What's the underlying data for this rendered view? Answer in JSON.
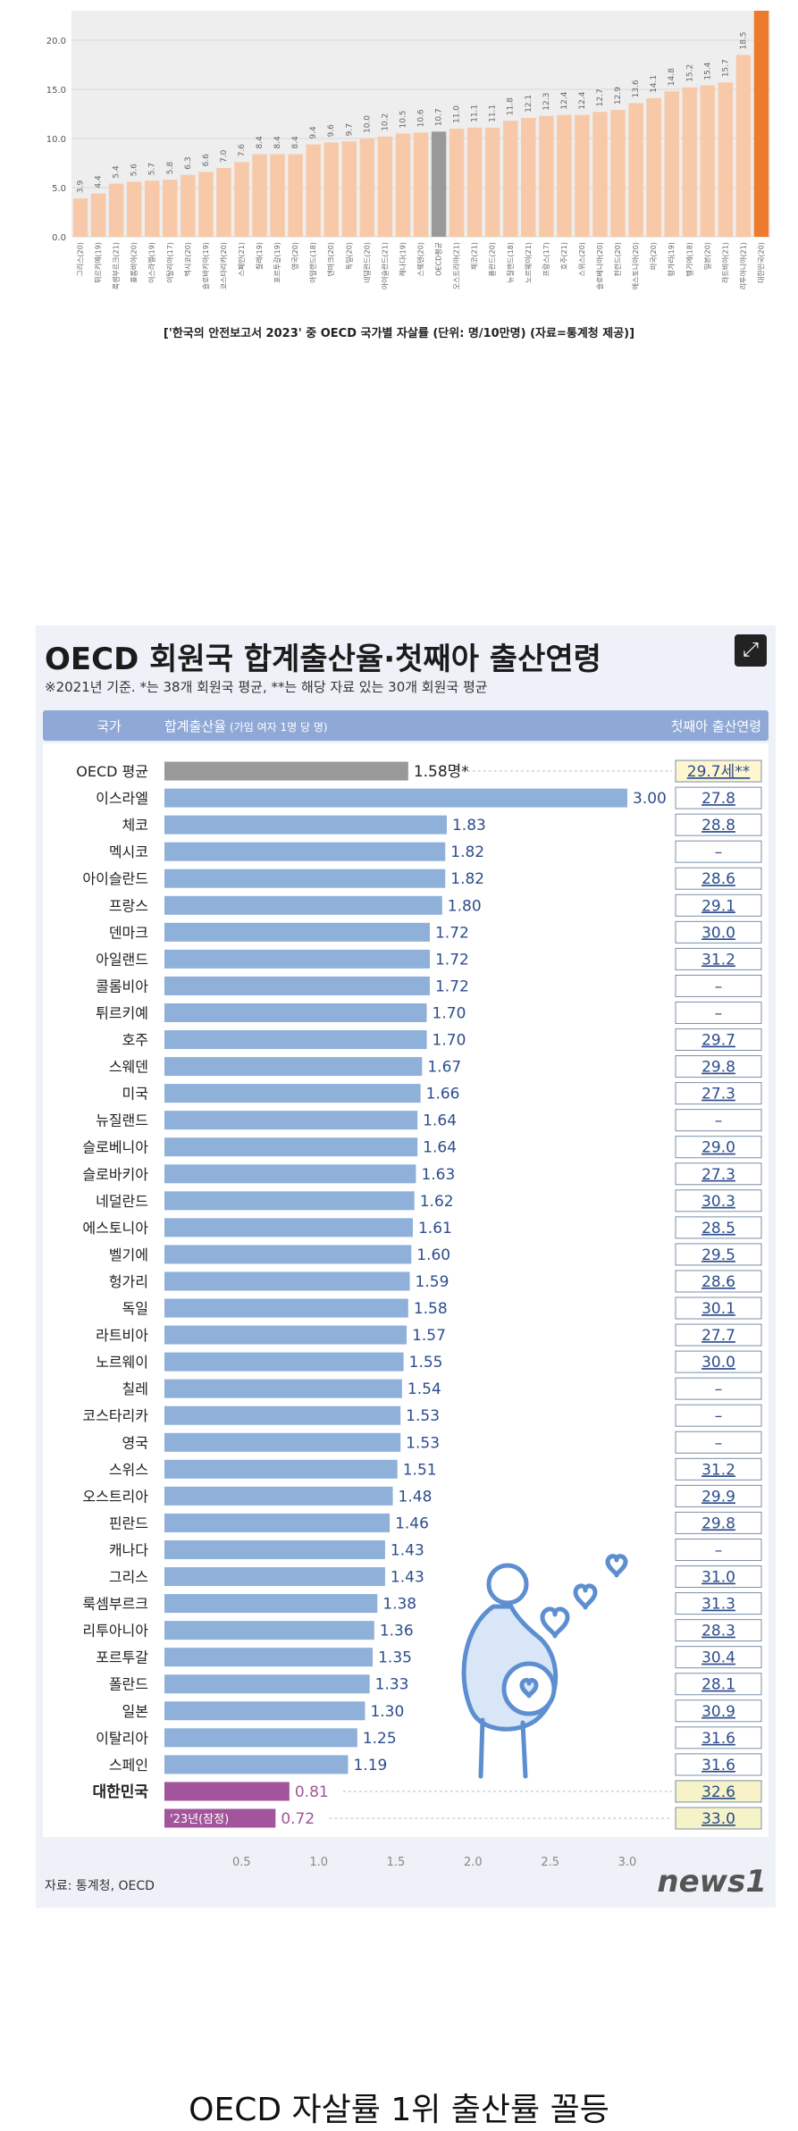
{
  "chart_data": [
    {
      "type": "bar",
      "title": "",
      "caption": "['한국의 안전보고서 2023' 중 OECD 국가별 자살률 (단위: 명/10만명) (자료=통계청 제공)]",
      "xlabel": "",
      "ylabel": "",
      "ylim": [
        0,
        23
      ],
      "yticks": [
        "0.0",
        "5.0",
        "10.0",
        "15.0",
        "20.0"
      ],
      "grid": true,
      "categories": [
        "그리스(20)",
        "튀르키예(19)",
        "룩셈부르크(21)",
        "콜롬비아(20)",
        "이스라엘(19)",
        "이탈리아(17)",
        "멕시코(20)",
        "슬로바키아(19)",
        "코스타리카(20)",
        "스페인(21)",
        "칠레(19)",
        "포르투갈(19)",
        "영국(20)",
        "아일랜드(18)",
        "덴마크(20)",
        "독일(20)",
        "네덜란드(20)",
        "아이슬란드(21)",
        "캐나다(19)",
        "스웨덴(20)",
        "OECD평균",
        "오스트리아(21)",
        "체코(21)",
        "폴란드(20)",
        "뉴질랜드(18)",
        "노르웨이(21)",
        "프랑스(17)",
        "호주(21)",
        "스위스(20)",
        "슬로베니아(20)",
        "핀란드(20)",
        "에스토니아(20)",
        "미국(20)",
        "헝가리(19)",
        "벨기에(18)",
        "일본(20)",
        "라트비아(21)",
        "리투아니아(21)",
        "대한민국(20)"
      ],
      "values": [
        3.9,
        4.4,
        5.4,
        5.6,
        5.7,
        5.8,
        6.3,
        6.6,
        7.0,
        7.6,
        8.4,
        8.4,
        8.4,
        9.4,
        9.6,
        9.7,
        10.0,
        10.2,
        10.5,
        10.6,
        10.7,
        11.0,
        11.1,
        11.1,
        11.8,
        12.1,
        12.3,
        12.4,
        12.4,
        12.7,
        12.9,
        13.6,
        14.1,
        14.8,
        15.2,
        15.4,
        15.7,
        18.5,
        23.0
      ],
      "value_labels": [
        "3.9",
        "4.4",
        "5.4",
        "5.6",
        "5.7",
        "5.8",
        "6.3",
        "6.6",
        "7.0",
        "7.6",
        "8.4",
        "8.4",
        "8.4",
        "9.4",
        "9.6",
        "9.7",
        "10.0",
        "10.2",
        "10.5",
        "10.6",
        "10.7",
        "11.0",
        "11.1",
        "11.1",
        "11.8",
        "12.1",
        "12.3",
        "12.4",
        "12.4",
        "12.7",
        "12.9",
        "13.6",
        "14.1",
        "14.8",
        "15.2",
        "15.4",
        "15.7",
        "18.5",
        ""
      ],
      "colors": {
        "bar": "#f7c9a8",
        "average": "#999999",
        "highlight": "#ee7a2d",
        "plot_bg": "#eeeeee"
      }
    },
    {
      "type": "bar",
      "orientation": "horizontal",
      "title": "OECD 회원국 합계출산율·첫째아 출산연령",
      "subtitle": "※2021년 기준. *는 38개 회원국 평균, **는 해당 자료 있는 30개 회원국 평균",
      "header": {
        "country": "국가",
        "tfr": "합계출산율",
        "tfr_unit": "(가임 여자 1명 당 명)",
        "age": "첫째아 출산연령"
      },
      "xlim": [
        0,
        3.0
      ],
      "xticks": [
        0.5,
        1.0,
        1.5,
        2.0,
        2.5,
        3.0
      ],
      "xtick_labels": [
        "0.5",
        "1.0",
        "1.5",
        "2.0",
        "2.5",
        "3.0"
      ],
      "rows": [
        {
          "country": "OECD 평균",
          "tfr": 1.58,
          "label": "1.58명*",
          "age": "29.7세**",
          "kind": "avg"
        },
        {
          "country": "이스라엘",
          "tfr": 3.0,
          "label": "3.00",
          "age": "27.8"
        },
        {
          "country": "체코",
          "tfr": 1.83,
          "label": "1.83",
          "age": "28.8"
        },
        {
          "country": "멕시코",
          "tfr": 1.82,
          "label": "1.82",
          "age": "–"
        },
        {
          "country": "아이슬란드",
          "tfr": 1.82,
          "label": "1.82",
          "age": "28.6"
        },
        {
          "country": "프랑스",
          "tfr": 1.8,
          "label": "1.80",
          "age": "29.1"
        },
        {
          "country": "덴마크",
          "tfr": 1.72,
          "label": "1.72",
          "age": "30.0"
        },
        {
          "country": "아일랜드",
          "tfr": 1.72,
          "label": "1.72",
          "age": "31.2"
        },
        {
          "country": "콜롬비아",
          "tfr": 1.72,
          "label": "1.72",
          "age": "–"
        },
        {
          "country": "튀르키예",
          "tfr": 1.7,
          "label": "1.70",
          "age": "–"
        },
        {
          "country": "호주",
          "tfr": 1.7,
          "label": "1.70",
          "age": "29.7"
        },
        {
          "country": "스웨덴",
          "tfr": 1.67,
          "label": "1.67",
          "age": "29.8"
        },
        {
          "country": "미국",
          "tfr": 1.66,
          "label": "1.66",
          "age": "27.3"
        },
        {
          "country": "뉴질랜드",
          "tfr": 1.64,
          "label": "1.64",
          "age": "–"
        },
        {
          "country": "슬로베니아",
          "tfr": 1.64,
          "label": "1.64",
          "age": "29.0"
        },
        {
          "country": "슬로바키아",
          "tfr": 1.63,
          "label": "1.63",
          "age": "27.3"
        },
        {
          "country": "네덜란드",
          "tfr": 1.62,
          "label": "1.62",
          "age": "30.3"
        },
        {
          "country": "에스토니아",
          "tfr": 1.61,
          "label": "1.61",
          "age": "28.5"
        },
        {
          "country": "벨기에",
          "tfr": 1.6,
          "label": "1.60",
          "age": "29.5"
        },
        {
          "country": "헝가리",
          "tfr": 1.59,
          "label": "1.59",
          "age": "28.6"
        },
        {
          "country": "독일",
          "tfr": 1.58,
          "label": "1.58",
          "age": "30.1"
        },
        {
          "country": "라트비아",
          "tfr": 1.57,
          "label": "1.57",
          "age": "27.7"
        },
        {
          "country": "노르웨이",
          "tfr": 1.55,
          "label": "1.55",
          "age": "30.0"
        },
        {
          "country": "칠레",
          "tfr": 1.54,
          "label": "1.54",
          "age": "–"
        },
        {
          "country": "코스타리카",
          "tfr": 1.53,
          "label": "1.53",
          "age": "–"
        },
        {
          "country": "영국",
          "tfr": 1.53,
          "label": "1.53",
          "age": "–"
        },
        {
          "country": "스위스",
          "tfr": 1.51,
          "label": "1.51",
          "age": "31.2"
        },
        {
          "country": "오스트리아",
          "tfr": 1.48,
          "label": "1.48",
          "age": "29.9"
        },
        {
          "country": "핀란드",
          "tfr": 1.46,
          "label": "1.46",
          "age": "29.8"
        },
        {
          "country": "캐나다",
          "tfr": 1.43,
          "label": "1.43",
          "age": "–"
        },
        {
          "country": "그리스",
          "tfr": 1.43,
          "label": "1.43",
          "age": "31.0"
        },
        {
          "country": "룩셈부르크",
          "tfr": 1.38,
          "label": "1.38",
          "age": "31.3"
        },
        {
          "country": "리투아니아",
          "tfr": 1.36,
          "label": "1.36",
          "age": "28.3"
        },
        {
          "country": "포르투갈",
          "tfr": 1.35,
          "label": "1.35",
          "age": "30.4"
        },
        {
          "country": "폴란드",
          "tfr": 1.33,
          "label": "1.33",
          "age": "28.1"
        },
        {
          "country": "일본",
          "tfr": 1.3,
          "label": "1.30",
          "age": "30.9"
        },
        {
          "country": "이탈리아",
          "tfr": 1.25,
          "label": "1.25",
          "age": "31.6"
        },
        {
          "country": "스페인",
          "tfr": 1.19,
          "label": "1.19",
          "age": "31.6"
        },
        {
          "country": "대한민국",
          "tfr": 0.81,
          "label": "0.81",
          "age": "32.6",
          "kind": "korea"
        },
        {
          "country": "",
          "inner_label": "'23년(잠정)",
          "tfr": 0.72,
          "label": "0.72",
          "age": "33.0",
          "kind": "korea"
        }
      ],
      "colors": {
        "bar": "#8fb0d9",
        "average": "#999999",
        "korea": "#a2559c",
        "header": "#8fa8d6",
        "age_avg_bg": "#fdf6cf",
        "age_korea_bg": "#f7f3c8",
        "age_bg": "#ffffff",
        "text_blue": "#2d4d8d"
      }
    }
  ],
  "infographic": {
    "source": "자료: 통계청, OECD",
    "logo": "news1",
    "expand_icon": "expand-icon",
    "illustration": "pregnant-woman-icon"
  },
  "footer": {
    "text": "OECD 자살률 1위 출산률 꼴등"
  }
}
